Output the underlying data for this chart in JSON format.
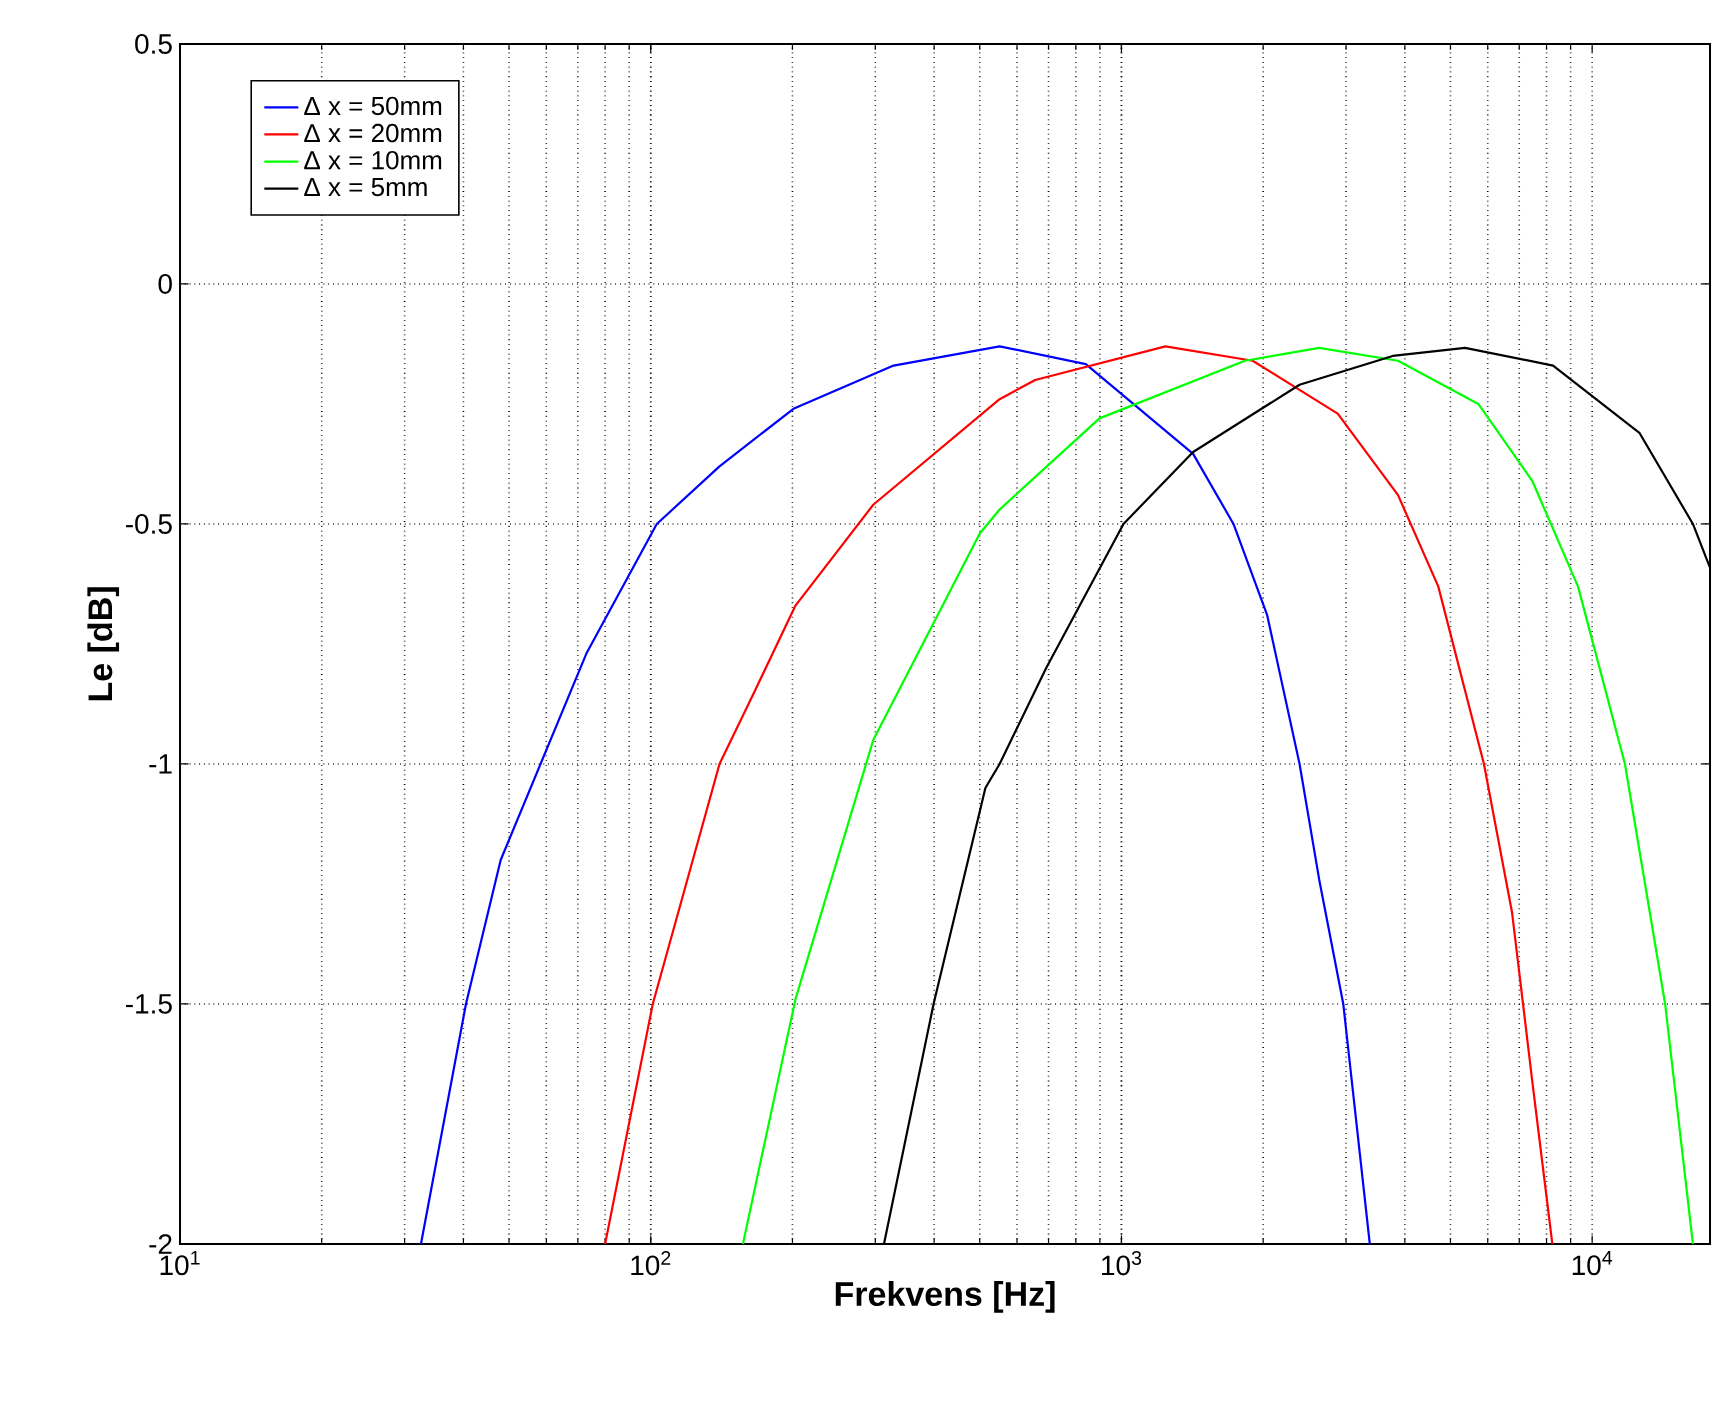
{
  "chart_data": {
    "type": "line",
    "xlabel": "Frekvens [Hz]",
    "ylabel": "Le [dB]",
    "log": "x",
    "grid": true,
    "legend": "top left",
    "line_style": "solid",
    "marker": "none",
    "xlim": [
      10,
      17800
    ],
    "ylim": [
      -2,
      0.5
    ],
    "xticks": [
      {
        "value": 10,
        "label": "10$^{1}$"
      },
      {
        "value": 100,
        "label": "10$^{2}$"
      },
      {
        "value": 1000,
        "label": "10$^{3}$"
      },
      {
        "value": 10000,
        "label": "10$^{4}$"
      }
    ],
    "yticks": [
      -2,
      -1.5,
      -1,
      -0.5,
      0,
      0.5
    ],
    "series": [
      {
        "name": "Δ x = 50mm",
        "color": "#0000ff",
        "x": [
          32.5,
          40.5,
          48,
          73,
          103,
          140,
          201,
          328,
          551,
          840,
          1420,
          1730,
          2040,
          2390,
          2630,
          2960,
          3370
        ],
        "values": [
          -2,
          -1.5,
          -1.2,
          -0.77,
          -0.5,
          -0.38,
          -0.26,
          -0.17,
          -0.13,
          -0.167,
          -0.354,
          -0.5,
          -0.69,
          -1.0,
          -1.24,
          -1.5,
          -2
        ]
      },
      {
        "name": "Δ x = 20mm",
        "color": "#ff0000",
        "x": [
          80,
          101,
          140,
          166,
          203,
          297,
          551,
          656,
          1240,
          1900,
          2880,
          3870,
          4710,
          5890,
          6760,
          7460,
          8230
        ],
        "values": [
          -2,
          -1.5,
          -1,
          -0.85,
          -0.67,
          -0.46,
          -0.24,
          -0.2,
          -0.13,
          -0.16,
          -0.27,
          -0.44,
          -0.63,
          -1,
          -1.31,
          -1.66,
          -2
        ]
      },
      {
        "name": "Δ x = 10mm",
        "color": "#00ff00",
        "x": [
          157,
          203,
          297,
          500,
          551,
          898,
          1830,
          2630,
          3870,
          5730,
          7460,
          9330,
          11740,
          14290,
          16370
        ],
        "values": [
          -2,
          -1.49,
          -0.95,
          -0.52,
          -0.47,
          -0.28,
          -0.16,
          -0.133,
          -0.16,
          -0.25,
          -0.41,
          -0.63,
          -1,
          -1.5,
          -2
        ]
      },
      {
        "name": "Δ x =  5mm",
        "color": "#000000",
        "x": [
          313,
          399,
          514,
          551,
          692,
          1010,
          1420,
          2390,
          3770,
          5370,
          8260,
          12600,
          16370,
          17780
        ],
        "values": [
          -2,
          -1.5,
          -1.05,
          -1,
          -0.8,
          -0.5,
          -0.35,
          -0.21,
          -0.15,
          -0.133,
          -0.17,
          -0.31,
          -0.5,
          -0.59
        ]
      }
    ]
  }
}
